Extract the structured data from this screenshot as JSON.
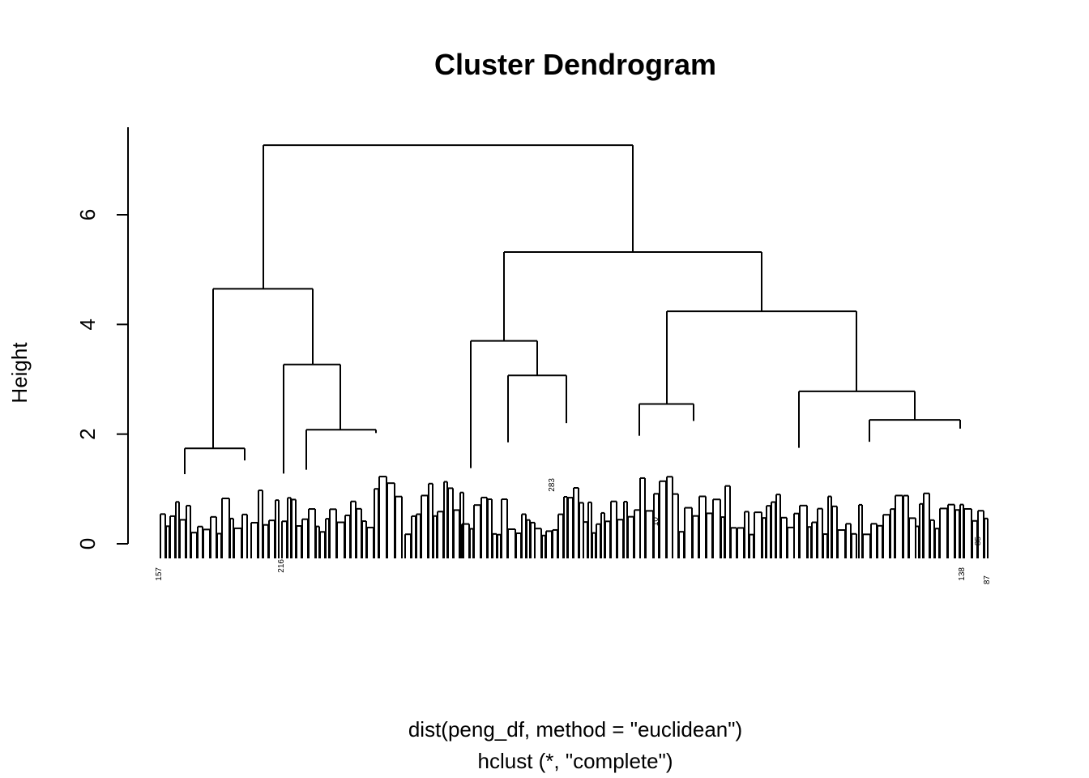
{
  "chart_data": {
    "type": "dendrogram",
    "title": "Cluster Dendrogram",
    "ylabel": "Height",
    "xlabel": "dist(peng_df, method = \"euclidean\")",
    "sublabel": "hclust (*, \"complete\")",
    "ylim": [
      0,
      7.3
    ],
    "y_ticks": [
      0,
      2,
      4,
      6
    ],
    "merges": [
      {
        "name": "root",
        "height": 7.27
      },
      {
        "name": "left-main",
        "height": 4.65
      },
      {
        "name": "right-main",
        "height": 5.32
      },
      {
        "name": "right-right",
        "height": 4.24
      },
      {
        "name": "right-left",
        "height": 3.7
      },
      {
        "name": "left-right",
        "height": 3.27
      },
      {
        "name": "right-left-right",
        "height": 3.07
      },
      {
        "name": "right-right-right",
        "height": 2.78
      },
      {
        "name": "right-right-left",
        "height": 2.55
      },
      {
        "name": "right-right-right-right",
        "height": 2.26
      },
      {
        "name": "left-left",
        "height": 1.74
      }
    ],
    "visible_leaf_labels": [
      "157",
      "283",
      "216",
      "10",
      "85",
      "138",
      "87"
    ]
  }
}
